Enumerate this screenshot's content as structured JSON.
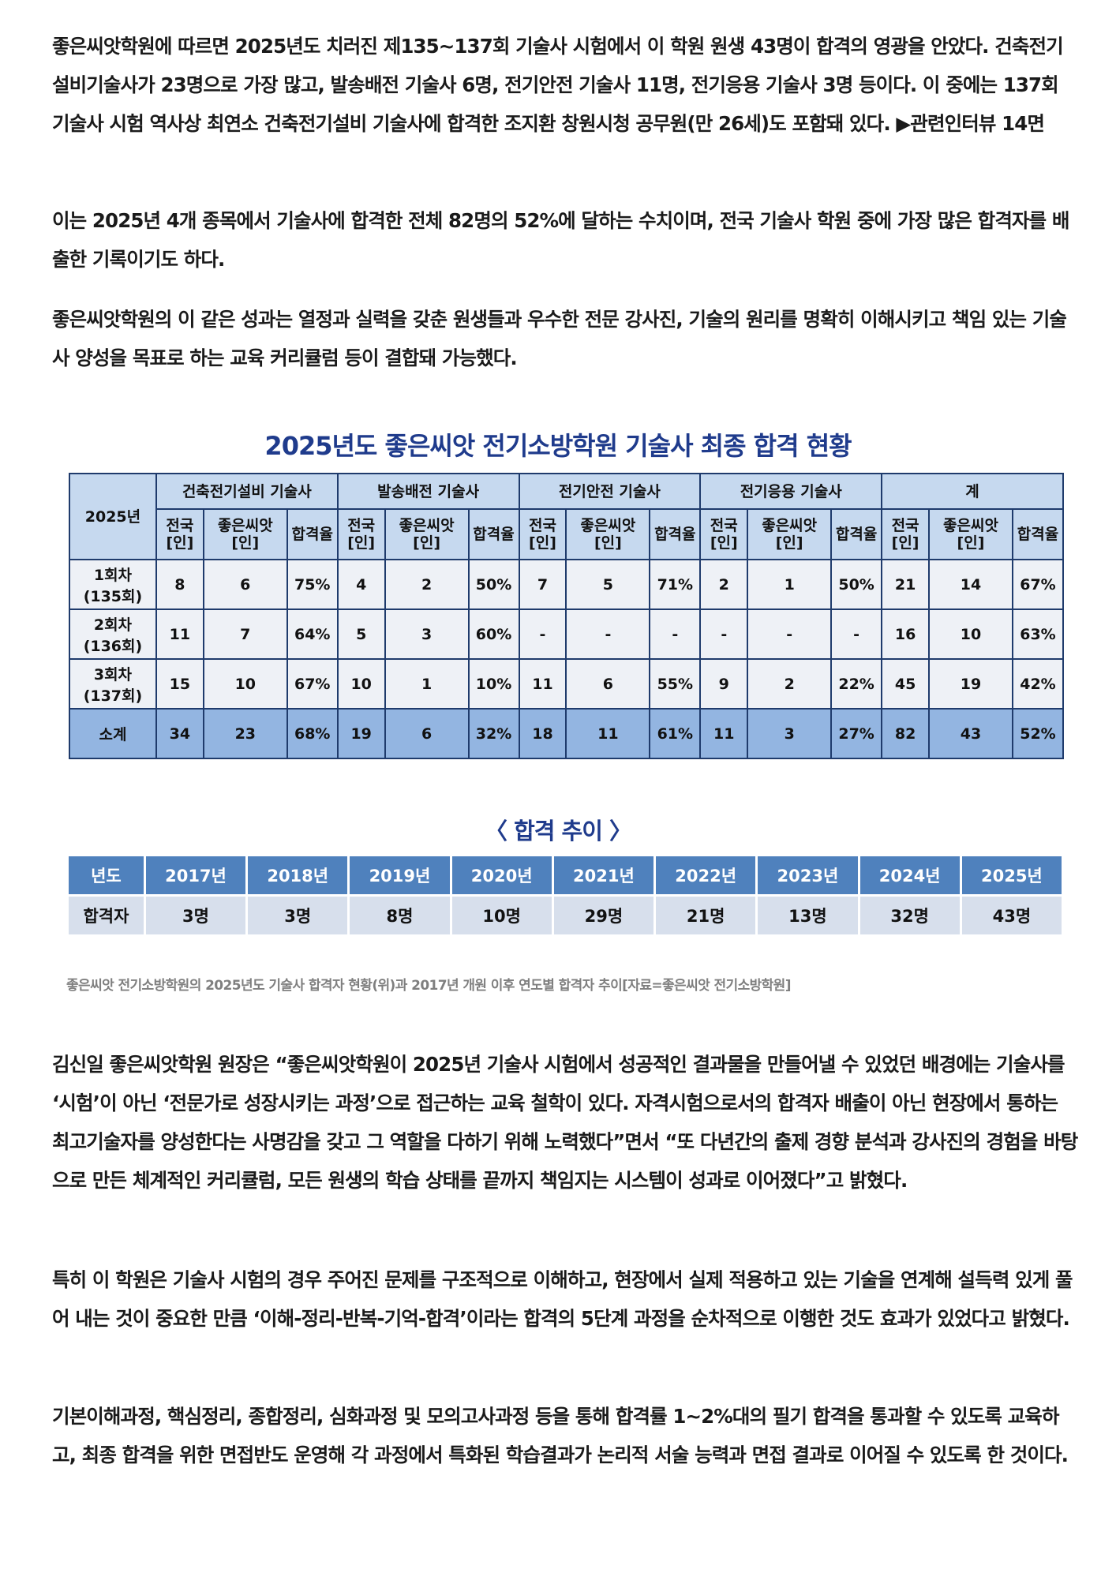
{
  "paragraphs_top": [
    "좋은씨앗학원에 따르면 2025년도 치러진 제135~137회 기술사 시험에서 이 학원 원생 43명이 합격의 영광을 안았다. 건축전기설비기술사가 23명으로 가장 많고, 발송배전 기술사 6명, 전기안전 기술사 11명, 전기응용 기술사 3명 등이다. 이 중에는 137회 기술사 시험 역사상 최연소 건축전기설비 기술사에 합격한 조지환 창원시청 공무원(만 26세)도 포함돼 있다. ▶관련인터뷰 14면",
    "이는 2025년 4개 종목에서 기술사에 합격한 전체 82명의 52%에 달하는 수치이며, 전국 기술사 학원 중에 가장 많은 합격자를 배출한 기록이기도 하다.",
    "좋은씨앗학원의 이 같은 성과는 열정과 실력을 갖춘 원생들과 우수한 전문 강사진, 기술의 원리를 명확히 이해시키고 책임 있는 기술사 양성을 목표로 하는 교육 커리큘럼 등이 결합돼 가능했다."
  ],
  "main_table": {
    "title": "2025년도 좋은씨앗 전기소방학원 기술사 최종 합격 현황",
    "corner": "2025년",
    "groups": [
      "건축전기설비 기술사",
      "발송배전 기술사",
      "전기안전 기술사",
      "전기응용 기술사",
      "계"
    ],
    "sub_national": [
      "전국",
      "[인]"
    ],
    "sub_academy": [
      "좋은씨앗",
      "[인]"
    ],
    "sub_rate": "합격율",
    "rows": [
      {
        "label": [
          "1회차",
          "(135회)"
        ],
        "cells": [
          "8",
          "6",
          "75%",
          "4",
          "2",
          "50%",
          "7",
          "5",
          "71%",
          "2",
          "1",
          "50%",
          "21",
          "14",
          "67%"
        ]
      },
      {
        "label": [
          "2회차",
          "(136회)"
        ],
        "cells": [
          "11",
          "7",
          "64%",
          "5",
          "3",
          "60%",
          "-",
          "-",
          "-",
          "-",
          "-",
          "-",
          "16",
          "10",
          "63%"
        ]
      },
      {
        "label": [
          "3회차",
          "(137회)"
        ],
        "cells": [
          "15",
          "10",
          "67%",
          "10",
          "1",
          "10%",
          "11",
          "6",
          "55%",
          "9",
          "2",
          "22%",
          "45",
          "19",
          "42%"
        ]
      },
      {
        "label": [
          "소계"
        ],
        "cells": [
          "34",
          "23",
          "68%",
          "19",
          "6",
          "32%",
          "18",
          "11",
          "61%",
          "11",
          "3",
          "27%",
          "82",
          "43",
          "52%"
        ]
      }
    ]
  },
  "trend_table": {
    "title": "〈 합격 추이 〉",
    "header_label": "년도",
    "row_label": "합격자",
    "years": [
      "2017년",
      "2018년",
      "2019년",
      "2020년",
      "2021년",
      "2022년",
      "2023년",
      "2024년",
      "2025년"
    ],
    "values": [
      "3명",
      "3명",
      "8명",
      "10명",
      "29명",
      "21명",
      "13명",
      "32명",
      "43명"
    ]
  },
  "caption": "좋은씨앗 전기소방학원의 2025년도 기술사 합격자 현황(위)과 2017년 개원 이후 연도별 합격자 추이[자료=좋은씨앗 전기소방학원]",
  "paragraphs_bottom": [
    "김신일 좋은씨앗학원 원장은 “좋은씨앗학원이 2025년 기술사 시험에서 성공적인 결과물을 만들어낼 수 있었던 배경에는 기술사를 ‘시험’이 아닌 ‘전문가로 성장시키는 과정’으로 접근하는 교육 철학이 있다. 자격시험으로서의 합격자 배출이 아닌 현장에서 통하는 최고기술자를 양성한다는 사명감을 갖고 그 역할을 다하기 위해 노력했다”면서 “또 다년간의 출제 경향 분석과 강사진의 경험을 바탕으로 만든 체계적인 커리큘럼, 모든 원생의 학습 상태를 끝까지 책임지는 시스템이 성과로 이어졌다”고 밝혔다.",
    "특히 이 학원은 기술사 시험의 경우 주어진 문제를 구조적으로 이해하고, 현장에서 실제 적용하고 있는 기술을 연계해 설득력 있게 풀어 내는 것이 중요한 만큼 ‘이해-정리-반복-기억-합격’이라는 합격의 5단계 과정을 순차적으로 이행한 것도 효과가 있었다고 밝혔다.",
    "기본이해과정, 핵심정리, 종합정리, 심화과정 및 모의고사과정 등을 통해 합격률 1~2%대의 필기 합격을 통과할 수 있도록 교육하고, 최종 합격을 위한 면접반도 운영해 각 과정에서 특화된 학습결과가 논리적 서술 능력과 면접 결과로 이어질 수 있도록 한 것이다."
  ],
  "colors": {
    "title": "#1f3b8c",
    "header_bg": "#c6d9ef",
    "subtotal_bg": "#93b5e1",
    "trend_header": "#4f81bd",
    "trend_row": "#d7dfec"
  }
}
